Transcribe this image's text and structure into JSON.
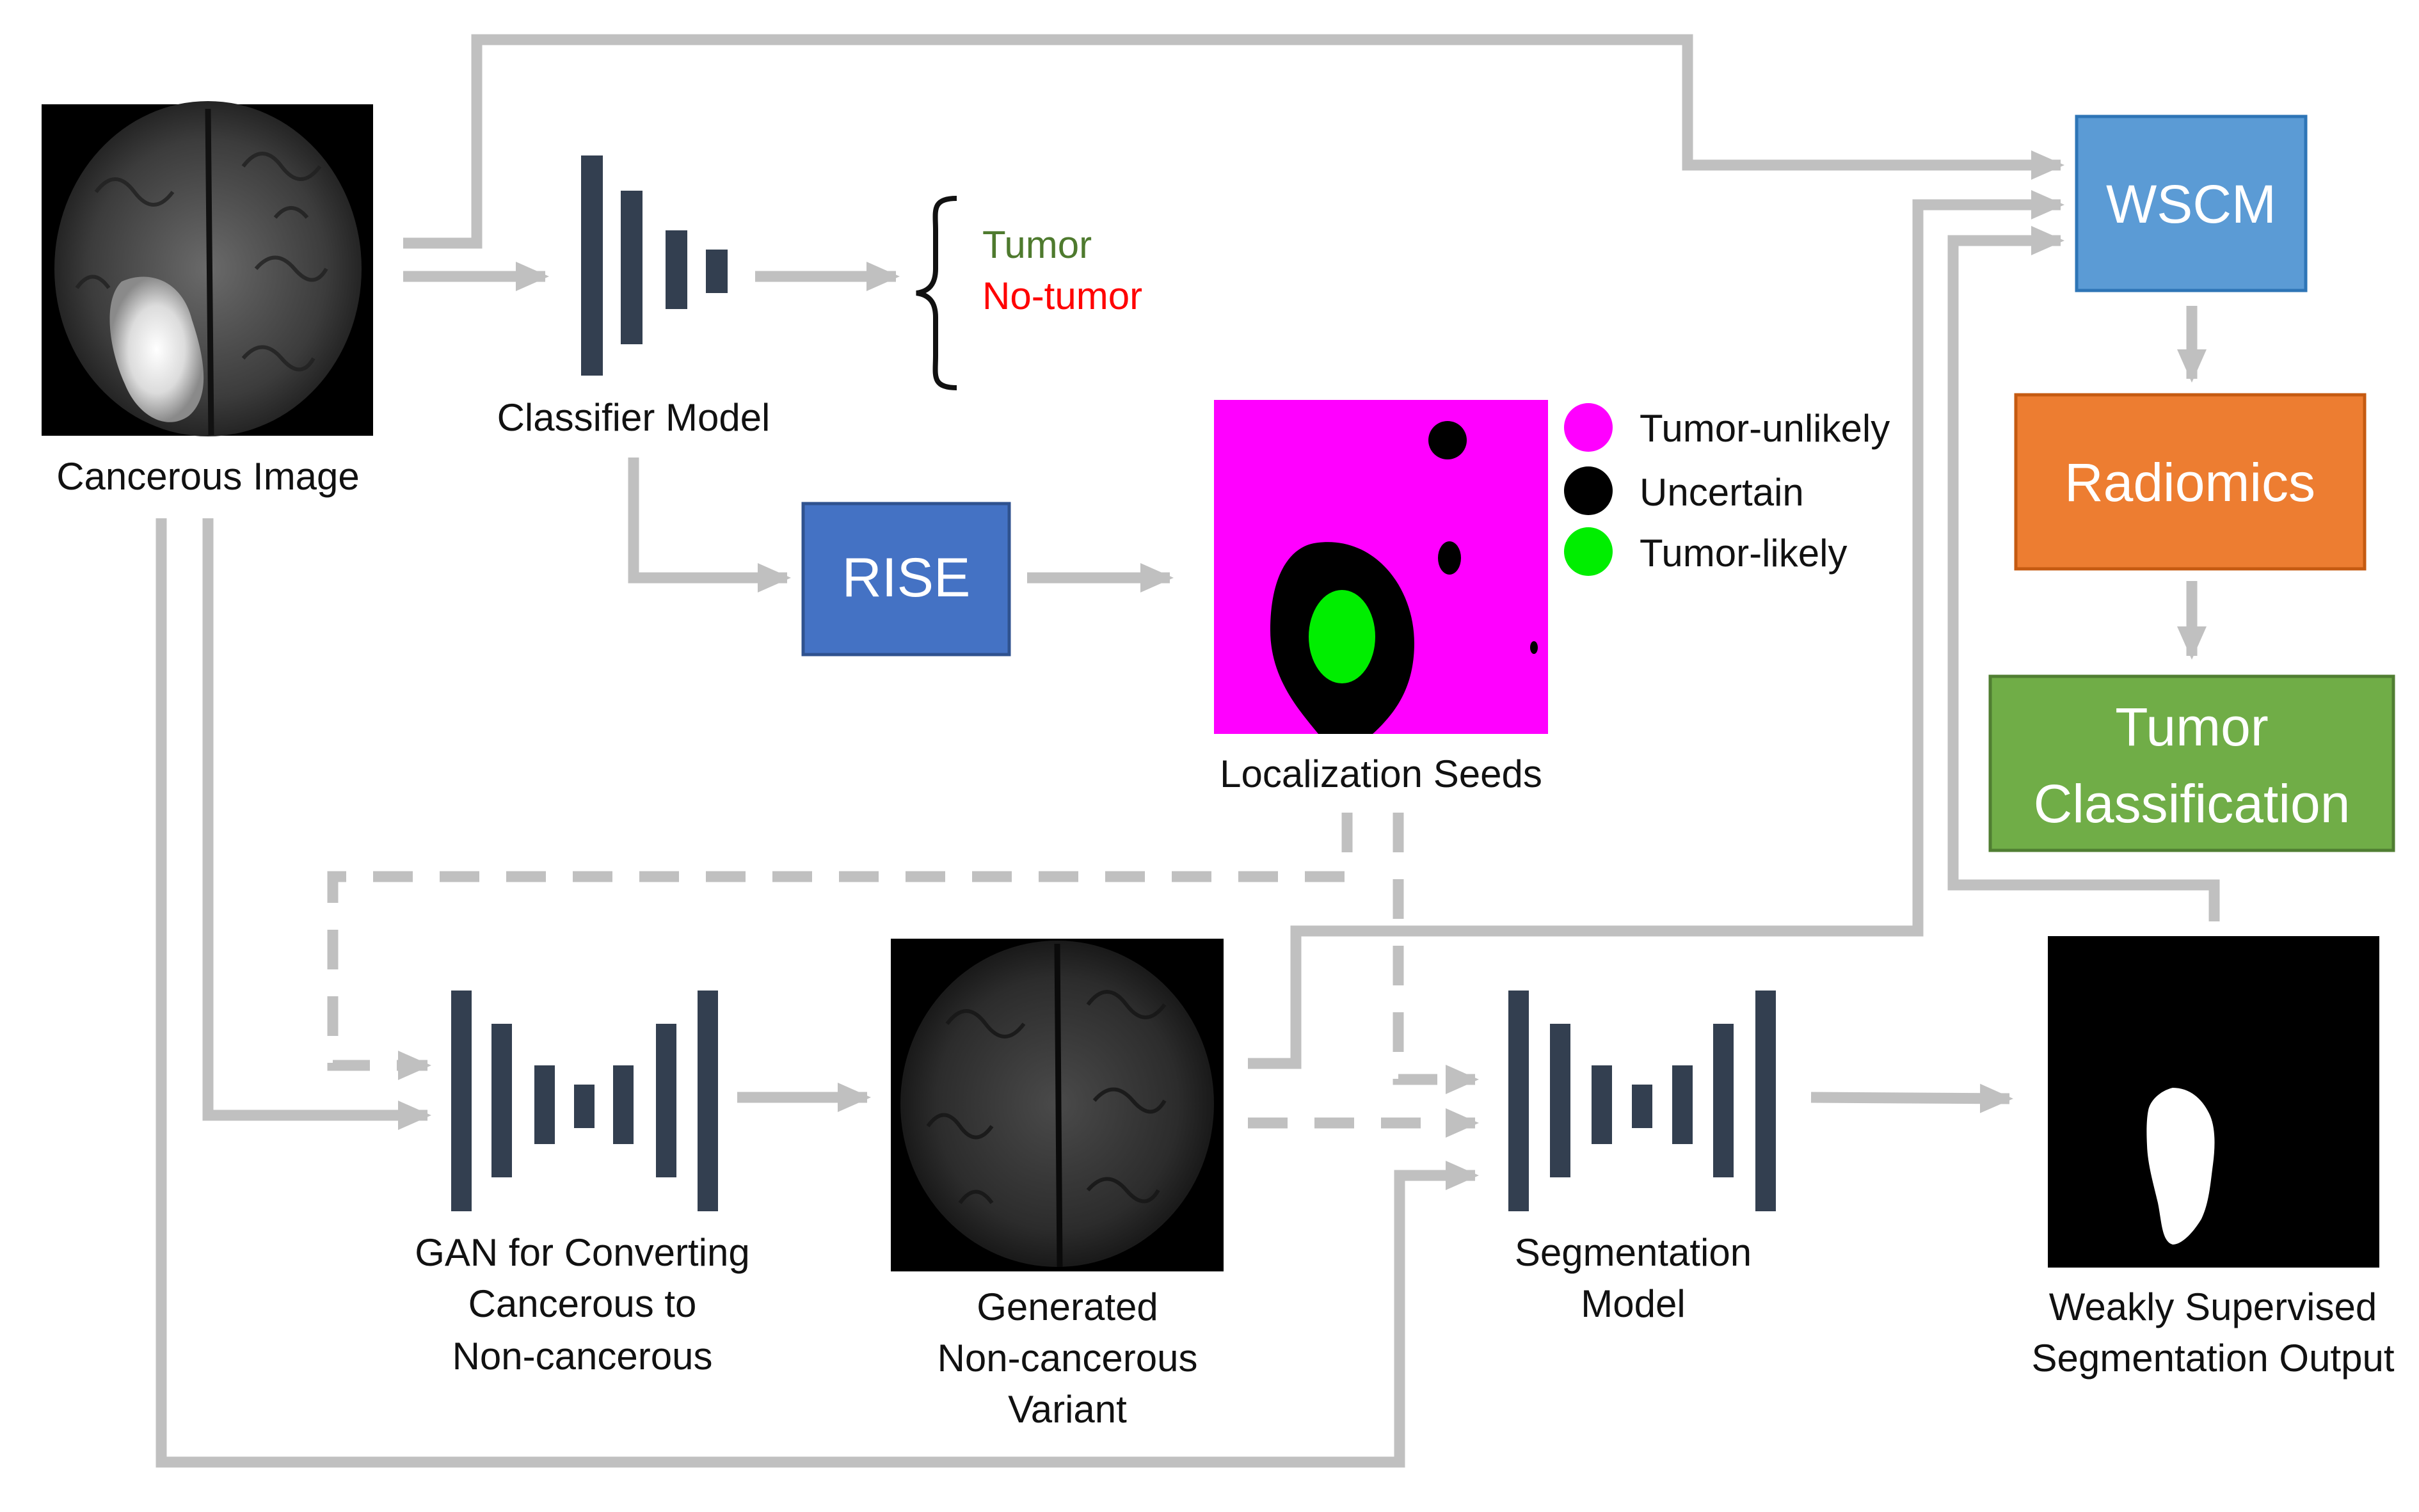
{
  "labels": {
    "cancerous_image": "Cancerous Image",
    "classifier_model": "Classifier Model",
    "tumor": "Tumor",
    "no_tumor": "No-tumor",
    "rise": "RISE",
    "localization_seeds": "Localization Seeds",
    "gan_line1": "GAN for Converting",
    "gan_line2": "Cancerous to",
    "gan_line3": "Non-cancerous",
    "generated_line1": "Generated",
    "generated_line2": "Non-cancerous",
    "generated_line3": "Variant",
    "segmentation_line1": "Segmentation",
    "segmentation_line2": "Model",
    "output_line1": "Weakly Supervised",
    "output_line2": "Segmentation Output",
    "wscm": "WSCM",
    "radiomics": "Radiomics",
    "tumor_classification_line1": "Tumor",
    "tumor_classification_line2": "Classification"
  },
  "legend": [
    {
      "label": "Tumor-unlikely",
      "color": "#ff00ff"
    },
    {
      "label": "Uncertain",
      "color": "#000000"
    },
    {
      "label": "Tumor-likely",
      "color": "#00ee00"
    }
  ],
  "colors": {
    "arrow": "#c0c0c0",
    "network_bars": "#333f50",
    "rise_box": "#4472c4",
    "wscm_box": "#5b9bd5",
    "radiomics_box": "#ed7d31",
    "classification_box": "#70ad47",
    "tumor_text": "#4e7a2e",
    "no_tumor_text": "#ff0000"
  }
}
